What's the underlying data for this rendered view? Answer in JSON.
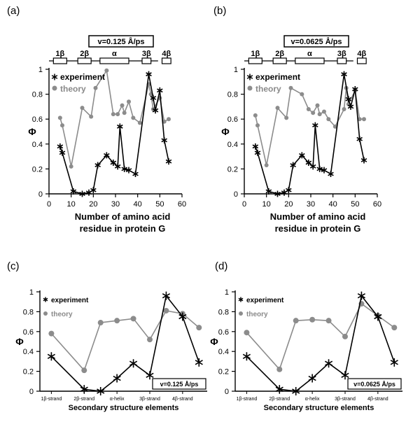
{
  "colors": {
    "experiment": "#000000",
    "theory": "#8c8c8c"
  },
  "secondary_structure": {
    "labels": [
      "1β",
      "2β",
      "α",
      "3β",
      "4β"
    ],
    "ranges": [
      [
        2,
        8
      ],
      [
        13,
        19
      ],
      [
        23,
        36
      ],
      [
        42,
        46
      ],
      [
        51,
        55
      ]
    ]
  },
  "chart_data": [
    {
      "id": "a",
      "panel_label": "(a)",
      "type": "line",
      "velocity_label": "v=0.125 Å/ps",
      "xlabel_line1": "Number of amino acid",
      "xlabel_line2": "residue in protein G",
      "ylabel": "Φ",
      "xlim": [
        0,
        60
      ],
      "ylim": [
        0,
        1
      ],
      "xticks": [
        0,
        10,
        20,
        30,
        40,
        50,
        60
      ],
      "yticks": [
        0,
        0.2,
        0.4,
        0.6,
        0.8,
        1
      ],
      "legend": [
        "experiment",
        "theory"
      ],
      "series": [
        {
          "name": "experiment",
          "x": [
            5,
            6,
            11,
            15,
            18,
            20,
            22,
            26,
            29,
            31,
            32,
            34,
            36,
            39,
            45,
            47,
            48,
            50,
            52,
            54
          ],
          "y": [
            0.38,
            0.33,
            0.02,
            0.0,
            0.01,
            0.03,
            0.23,
            0.31,
            0.25,
            0.22,
            0.54,
            0.2,
            0.19,
            0.16,
            0.96,
            0.77,
            0.67,
            0.83,
            0.43,
            0.26
          ]
        },
        {
          "name": "theory",
          "x": [
            5,
            6,
            10,
            15,
            19,
            21,
            26,
            29,
            31,
            33,
            34,
            36,
            38,
            41,
            45,
            46,
            47,
            50,
            52,
            54
          ],
          "y": [
            0.61,
            0.55,
            0.22,
            0.69,
            0.62,
            0.85,
            0.99,
            0.64,
            0.64,
            0.71,
            0.65,
            0.74,
            0.61,
            0.57,
            0.88,
            0.8,
            0.68,
            0.77,
            0.58,
            0.6
          ]
        }
      ]
    },
    {
      "id": "b",
      "panel_label": "(b)",
      "type": "line",
      "velocity_label": "v=0.0625 Å/ps",
      "xlabel_line1": "Number of amino acid",
      "xlabel_line2": "residue in protein G",
      "ylabel": "Φ",
      "xlim": [
        0,
        60
      ],
      "ylim": [
        0,
        1
      ],
      "xticks": [
        0,
        10,
        20,
        30,
        40,
        50,
        60
      ],
      "yticks": [
        0,
        0.2,
        0.4,
        0.6,
        0.8,
        1
      ],
      "legend": [
        "experiment",
        "theory"
      ],
      "series": [
        {
          "name": "experiment",
          "x": [
            5,
            6,
            11,
            15,
            18,
            20,
            22,
            26,
            29,
            31,
            32,
            34,
            36,
            39,
            45,
            47,
            48,
            50,
            52,
            54
          ],
          "y": [
            0.38,
            0.33,
            0.02,
            0.0,
            0.01,
            0.03,
            0.23,
            0.31,
            0.25,
            0.22,
            0.55,
            0.2,
            0.19,
            0.16,
            0.96,
            0.76,
            0.7,
            0.84,
            0.44,
            0.27
          ]
        },
        {
          "name": "theory",
          "x": [
            5,
            6,
            10,
            15,
            19,
            21,
            26,
            29,
            31,
            33,
            34,
            36,
            38,
            41,
            45,
            46,
            47,
            50,
            52,
            54
          ],
          "y": [
            0.63,
            0.55,
            0.23,
            0.69,
            0.61,
            0.85,
            0.8,
            0.68,
            0.65,
            0.71,
            0.64,
            0.66,
            0.6,
            0.54,
            0.68,
            0.85,
            0.72,
            0.83,
            0.6,
            0.6
          ]
        }
      ]
    },
    {
      "id": "c",
      "panel_label": "(c)",
      "type": "line",
      "velocity_label": "v=0.125 Å/ps",
      "xlabel": "Secondary structure elements",
      "ylabel": "Φ",
      "ylim": [
        0,
        1
      ],
      "yticks": [
        0,
        0.2,
        0.4,
        0.6,
        0.8,
        1
      ],
      "categories": [
        "1β-strand",
        "2β-strand",
        "α-helix",
        "3β-strand",
        "4β-strand"
      ],
      "legend": [
        "experiment",
        "theory"
      ],
      "series": [
        {
          "name": "experiment",
          "x": [
            0,
            1,
            1.5,
            2,
            2.5,
            3,
            3.5,
            4,
            4.5
          ],
          "y": [
            0.35,
            0.02,
            0.0,
            0.13,
            0.28,
            0.16,
            0.96,
            0.75,
            0.29
          ]
        },
        {
          "name": "theory",
          "x": [
            0,
            1,
            1.5,
            2,
            2.5,
            3,
            3.5,
            4,
            4.5
          ],
          "y": [
            0.58,
            0.21,
            0.69,
            0.71,
            0.73,
            0.52,
            0.81,
            0.78,
            0.64
          ]
        }
      ]
    },
    {
      "id": "d",
      "panel_label": "(d)",
      "type": "line",
      "velocity_label": "v=0.0625 Å/ps",
      "xlabel": "Secondary structure elements",
      "ylabel": "Φ",
      "ylim": [
        0,
        1
      ],
      "yticks": [
        0,
        0.2,
        0.4,
        0.6,
        0.8,
        1
      ],
      "categories": [
        "1β-strand",
        "2β-strand",
        "α-helix",
        "3β-strand",
        "4β-strand"
      ],
      "legend": [
        "experiment",
        "theory"
      ],
      "series": [
        {
          "name": "experiment",
          "x": [
            0,
            1,
            1.5,
            2,
            2.5,
            3,
            3.5,
            4,
            4.5
          ],
          "y": [
            0.35,
            0.02,
            0.0,
            0.13,
            0.28,
            0.16,
            0.96,
            0.75,
            0.29
          ]
        },
        {
          "name": "theory",
          "x": [
            0,
            1,
            1.5,
            2,
            2.5,
            3,
            3.5,
            4,
            4.5
          ],
          "y": [
            0.59,
            0.22,
            0.71,
            0.72,
            0.71,
            0.55,
            0.88,
            0.76,
            0.64
          ]
        }
      ]
    }
  ]
}
